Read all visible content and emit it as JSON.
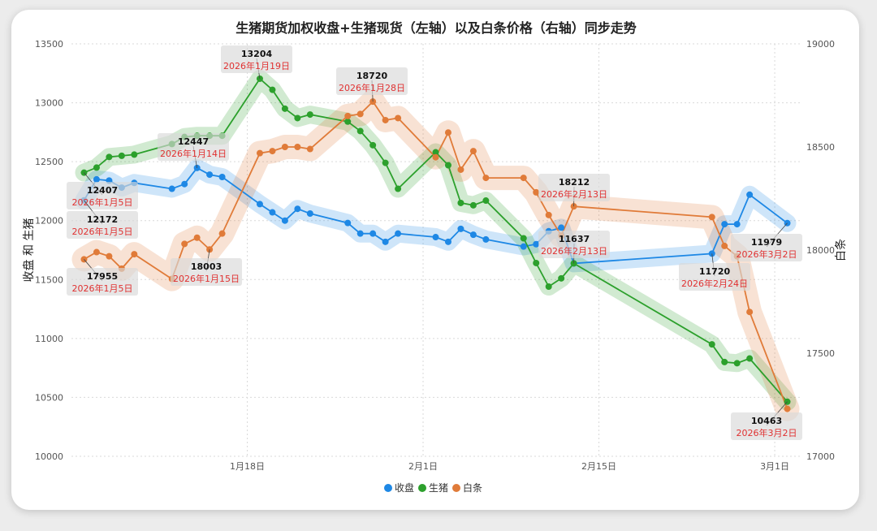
{
  "chart_data": {
    "type": "line",
    "title": "生猪期货加权收盘+生猪现货（左轴）以及白条价格（右轴）同步走势",
    "ylabel_left": "收盘 和 生猪",
    "ylabel_right": "白条",
    "ylim_left": [
      10000,
      13500
    ],
    "ylim_right": [
      17000,
      19000
    ],
    "yticks_left": [
      10000,
      10500,
      11000,
      11500,
      12000,
      12500,
      13000,
      13500
    ],
    "yticks_right": [
      17000,
      17500,
      18000,
      18500,
      19000
    ],
    "xlim": [
      "2026-01-04",
      "2026-03-03"
    ],
    "xticks": [
      {
        "date": "2026-01-18",
        "label": "1月18日"
      },
      {
        "date": "2026-02-01",
        "label": "2月1日"
      },
      {
        "date": "2026-02-15",
        "label": "2月15日"
      },
      {
        "date": "2026-03-01",
        "label": "3月1日"
      }
    ],
    "grid": true,
    "legend_position": "bottom-center",
    "colors": {
      "收盘": "#1e88e5",
      "生猪": "#2ca02c",
      "白条": "#e07b39"
    },
    "series": [
      {
        "name": "收盘",
        "axis": "left",
        "x": [
          "2026-01-05",
          "2026-01-06",
          "2026-01-07",
          "2026-01-08",
          "2026-01-09",
          "2026-01-12",
          "2026-01-13",
          "2026-01-14",
          "2026-01-15",
          "2026-01-16",
          "2026-01-19",
          "2026-01-20",
          "2026-01-21",
          "2026-01-22",
          "2026-01-23",
          "2026-01-26",
          "2026-01-27",
          "2026-01-28",
          "2026-01-29",
          "2026-01-30",
          "2026-02-02",
          "2026-02-03",
          "2026-02-04",
          "2026-02-05",
          "2026-02-06",
          "2026-02-09",
          "2026-02-10",
          "2026-02-11",
          "2026-02-12",
          "2026-02-13",
          "2026-02-24",
          "2026-02-25",
          "2026-02-26",
          "2026-02-27",
          "2026-03-02"
        ],
        "values": [
          12172,
          12350,
          12340,
          12280,
          12320,
          12270,
          12310,
          12447,
          12390,
          12370,
          12140,
          12070,
          12000,
          12100,
          12060,
          11980,
          11890,
          11890,
          11820,
          11890,
          11860,
          11820,
          11930,
          11880,
          11840,
          11780,
          11800,
          11910,
          11940,
          11637,
          11720,
          11970,
          11970,
          12220,
          11979
        ]
      },
      {
        "name": "生猪",
        "axis": "left",
        "x": [
          "2026-01-05",
          "2026-01-06",
          "2026-01-07",
          "2026-01-08",
          "2026-01-09",
          "2026-01-12",
          "2026-01-13",
          "2026-01-14",
          "2026-01-15",
          "2026-01-16",
          "2026-01-19",
          "2026-01-20",
          "2026-01-21",
          "2026-01-22",
          "2026-01-23",
          "2026-01-26",
          "2026-01-27",
          "2026-01-28",
          "2026-01-29",
          "2026-01-30",
          "2026-02-02",
          "2026-02-03",
          "2026-02-04",
          "2026-02-05",
          "2026-02-06",
          "2026-02-09",
          "2026-02-10",
          "2026-02-11",
          "2026-02-12",
          "2026-02-13",
          "2026-02-24",
          "2026-02-25",
          "2026-02-26",
          "2026-02-27",
          "2026-03-02"
        ],
        "values": [
          12407,
          12450,
          12540,
          12550,
          12560,
          12650,
          12710,
          12720,
          12720,
          12720,
          13204,
          13110,
          12950,
          12870,
          12900,
          12840,
          12760,
          12640,
          12490,
          12270,
          12580,
          12470,
          12150,
          12130,
          12170,
          11850,
          11640,
          11440,
          11510,
          11637,
          10950,
          10800,
          10790,
          10830,
          10463
        ]
      },
      {
        "name": "白条",
        "axis": "right",
        "x": [
          "2026-01-05",
          "2026-01-06",
          "2026-01-07",
          "2026-01-08",
          "2026-01-09",
          "2026-01-12",
          "2026-01-13",
          "2026-01-14",
          "2026-01-15",
          "2026-01-16",
          "2026-01-19",
          "2026-01-20",
          "2026-01-21",
          "2026-01-22",
          "2026-01-23",
          "2026-01-26",
          "2026-01-27",
          "2026-01-28",
          "2026-01-29",
          "2026-01-30",
          "2026-02-02",
          "2026-02-03",
          "2026-02-04",
          "2026-02-05",
          "2026-02-06",
          "2026-02-09",
          "2026-02-10",
          "2026-02-11",
          "2026-02-12",
          "2026-02-13",
          "2026-02-24",
          "2026-02-25",
          "2026-02-26",
          "2026-02-27",
          "2026-03-02"
        ],
        "values": [
          17955,
          17990,
          17970,
          17910,
          17980,
          17860,
          18030,
          18060,
          18003,
          18080,
          18470,
          18480,
          18500,
          18500,
          18490,
          18650,
          18660,
          18720,
          18630,
          18640,
          18450,
          18570,
          18390,
          18480,
          18350,
          18350,
          18280,
          18170,
          18070,
          18212,
          18160,
          18020,
          17970,
          17700,
          17230
        ]
      }
    ],
    "annotations": [
      {
        "value": "13204",
        "date": "2026年1月19日"
      },
      {
        "value": "18720",
        "date": "2026年1月28日"
      },
      {
        "value": "12447",
        "date": "2026年1月14日"
      },
      {
        "value": "12407",
        "date": "2026年1月5日"
      },
      {
        "value": "12172",
        "date": "2026年1月5日"
      },
      {
        "value": "17955",
        "date": "2026年1月5日"
      },
      {
        "value": "18003",
        "date": "2026年1月15日"
      },
      {
        "value": "18212",
        "date": "2026年2月13日"
      },
      {
        "value": "11637",
        "date": "2026年2月13日"
      },
      {
        "value": "11720",
        "date": "2026年2月24日"
      },
      {
        "value": "11979",
        "date": "2026年3月2日"
      },
      {
        "value": "10463",
        "date": "2026年3月2日"
      }
    ]
  }
}
